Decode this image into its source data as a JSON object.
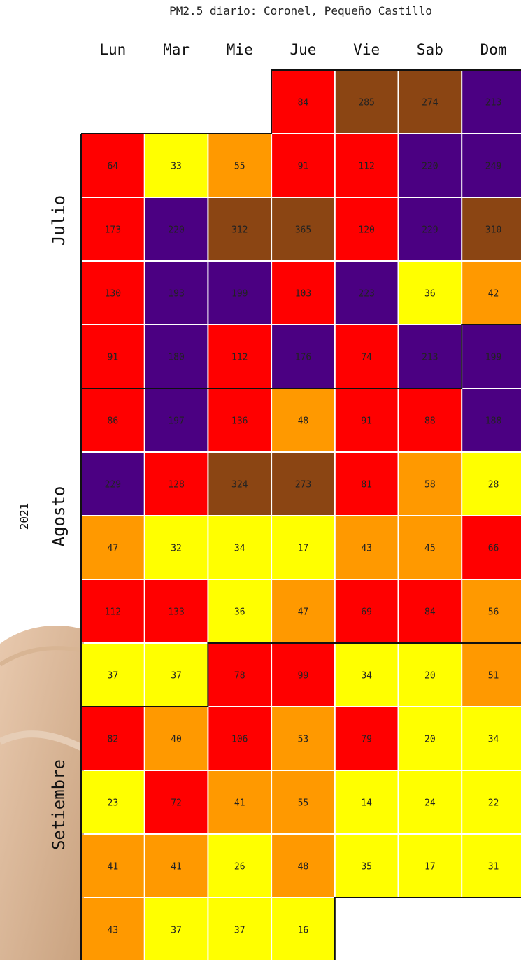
{
  "title": "PM2.5 diario: Coronel, Pequeño Castillo",
  "year_label": "2021",
  "chart_data": {
    "type": "heatmap",
    "title": "PM2.5 diario: Coronel, Pequeño Castillo",
    "columns": [
      "Lun",
      "Mar",
      "Mie",
      "Jue",
      "Vie",
      "Sab",
      "Dom"
    ],
    "months": [
      {
        "name": "Julio"
      },
      {
        "name": "Agosto"
      },
      {
        "name": "Setiembre"
      }
    ],
    "weeks": [
      [
        null,
        null,
        null,
        84,
        285,
        274,
        213
      ],
      [
        64,
        33,
        55,
        91,
        112,
        220,
        249
      ],
      [
        173,
        220,
        312,
        365,
        120,
        229,
        310
      ],
      [
        130,
        193,
        199,
        103,
        223,
        36,
        42
      ],
      [
        91,
        180,
        112,
        176,
        74,
        213,
        199
      ],
      [
        86,
        197,
        136,
        48,
        91,
        88,
        188
      ],
      [
        229,
        128,
        324,
        273,
        81,
        58,
        28
      ],
      [
        47,
        32,
        34,
        17,
        43,
        45,
        66
      ],
      [
        112,
        133,
        36,
        47,
        69,
        84,
        56
      ],
      [
        37,
        37,
        78,
        99,
        34,
        20,
        51
      ],
      [
        82,
        40,
        106,
        53,
        79,
        20,
        34
      ],
      [
        23,
        72,
        41,
        55,
        14,
        24,
        22
      ],
      [
        41,
        41,
        26,
        48,
        35,
        17,
        31
      ],
      [
        43,
        37,
        37,
        16,
        null,
        null,
        null
      ]
    ],
    "color_scale": [
      {
        "max": 37,
        "color": "#ffff00"
      },
      {
        "max": 62,
        "color": "#ff9900"
      },
      {
        "max": 174,
        "color": "#ff0000"
      },
      {
        "max": 249,
        "color": "#4b0082"
      },
      {
        "max": 9999,
        "color": "#8b4513"
      }
    ]
  }
}
